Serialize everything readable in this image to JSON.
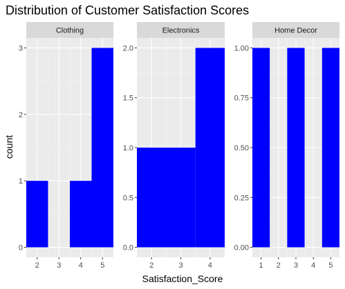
{
  "colors": {
    "bar": "#0000ff",
    "panel_bg": "#ebebeb",
    "strip_bg": "#d9d9d9",
    "grid_major": "#ffffff",
    "grid_minor": "#f5f5f5",
    "tick": "#333333"
  },
  "chart_data": {
    "type": "bar",
    "title": "Distribution of Customer Satisfaction Scores",
    "xlabel": "Satisfaction_Score",
    "ylabel": "count",
    "grid": true,
    "facets": [
      {
        "name": "Clothing",
        "categories": [
          "2",
          "3",
          "4",
          "5"
        ],
        "values": [
          1,
          0,
          1,
          3
        ],
        "x_ticks": [
          2,
          3,
          4,
          5
        ],
        "x_tick_labels": [
          "2",
          "3",
          "4",
          "5"
        ],
        "xlim": [
          1.5,
          5.5
        ],
        "y_ticks": [
          0,
          1,
          2,
          3
        ],
        "y_tick_labels": [
          "0",
          "1",
          "2",
          "3"
        ],
        "ylim": [
          -0.15,
          3.15
        ],
        "bars": [
          {
            "xmin": 1.5,
            "xmax": 2.5,
            "value": 1
          },
          {
            "xmin": 3.5,
            "xmax": 4.5,
            "value": 1
          },
          {
            "xmin": 4.5,
            "xmax": 5.5,
            "value": 3
          }
        ]
      },
      {
        "name": "Electronics",
        "categories": [
          "2",
          "3",
          "4"
        ],
        "values": [
          1,
          1,
          2
        ],
        "x_ticks": [
          2,
          3,
          4
        ],
        "x_tick_labels": [
          "2",
          "3",
          "4"
        ],
        "xlim": [
          1.5,
          4.5
        ],
        "y_ticks": [
          0,
          0.5,
          1,
          1.5,
          2
        ],
        "y_tick_labels": [
          "0.0",
          "0.5",
          "1.0",
          "1.5",
          "2.0"
        ],
        "ylim": [
          -0.1,
          2.1
        ],
        "bars": [
          {
            "xmin": 1.5,
            "xmax": 3.5,
            "value": 1
          },
          {
            "xmin": 3.5,
            "xmax": 4.5,
            "value": 2
          }
        ]
      },
      {
        "name": "Home Decor",
        "categories": [
          "1",
          "2",
          "3",
          "4",
          "5"
        ],
        "values": [
          1,
          0,
          1,
          0,
          1
        ],
        "x_ticks": [
          1,
          2,
          3,
          4,
          5
        ],
        "x_tick_labels": [
          "1",
          "2",
          "3",
          "4",
          "5"
        ],
        "xlim": [
          0.5,
          5.5
        ],
        "y_ticks": [
          0,
          0.25,
          0.5,
          0.75,
          1
        ],
        "y_tick_labels": [
          "0.00",
          "0.25",
          "0.50",
          "0.75",
          "1.00"
        ],
        "ylim": [
          -0.05,
          1.05
        ],
        "bars": [
          {
            "xmin": 0.5,
            "xmax": 1.5,
            "value": 1
          },
          {
            "xmin": 2.5,
            "xmax": 3.5,
            "value": 1
          },
          {
            "xmin": 4.5,
            "xmax": 5.5,
            "value": 1
          }
        ]
      }
    ]
  }
}
